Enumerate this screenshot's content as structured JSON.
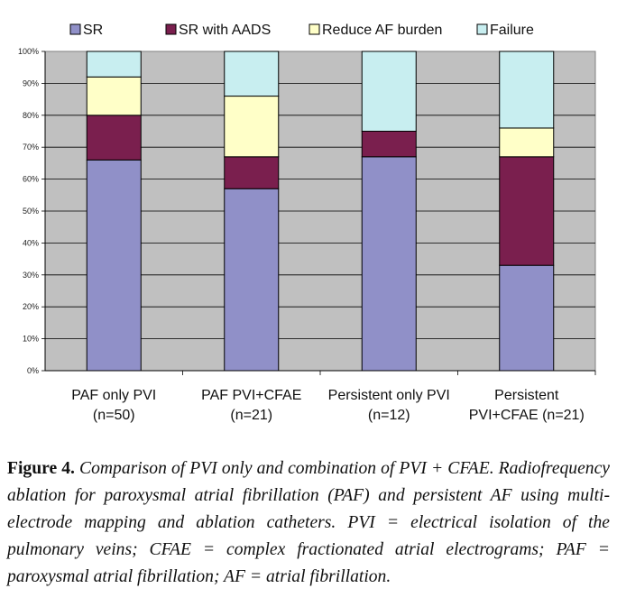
{
  "chart_data": {
    "type": "bar",
    "stacked": true,
    "categories": [
      [
        "PAF only PVI",
        "(n=50)"
      ],
      [
        "PAF PVI+CFAE",
        "(n=21)"
      ],
      [
        "Persistent only PVI",
        "(n=12)"
      ],
      [
        "Persistent",
        "PVI+CFAE (n=21)"
      ]
    ],
    "series": [
      {
        "name": "SR",
        "color": "#9090c8",
        "values": [
          66,
          57,
          67,
          33
        ]
      },
      {
        "name": "SR with AADS",
        "color": "#7a1f4e",
        "values": [
          14,
          10,
          8,
          34
        ]
      },
      {
        "name": "Reduce AF burden",
        "color": "#ffffc8",
        "values": [
          12,
          19,
          0,
          9
        ]
      },
      {
        "name": "Failure",
        "color": "#c8eef0",
        "values": [
          8,
          14,
          25,
          24
        ]
      }
    ],
    "y_ticks": [
      "0%",
      "10%",
      "20%",
      "30%",
      "40%",
      "50%",
      "60%",
      "70%",
      "80%",
      "90%",
      "100%"
    ],
    "ylim": [
      0,
      100
    ],
    "legend_position": "top",
    "plot_background": "#c0c0c0",
    "grid": true
  },
  "caption": {
    "label": "Figure 4.",
    "text": "Comparison of PVI only and combination of PVI + CFAE. Radiofrequency ablation for paroxysmal atrial fibrillation (PAF) and persistent AF using multi-electrode mapping and ablation catheters. PVI = electrical isolation of the pulmonary veins; CFAE = complex fractionated atrial electrograms; PAF = paroxysmal atrial fibrillation; AF = atrial fibrillation."
  }
}
